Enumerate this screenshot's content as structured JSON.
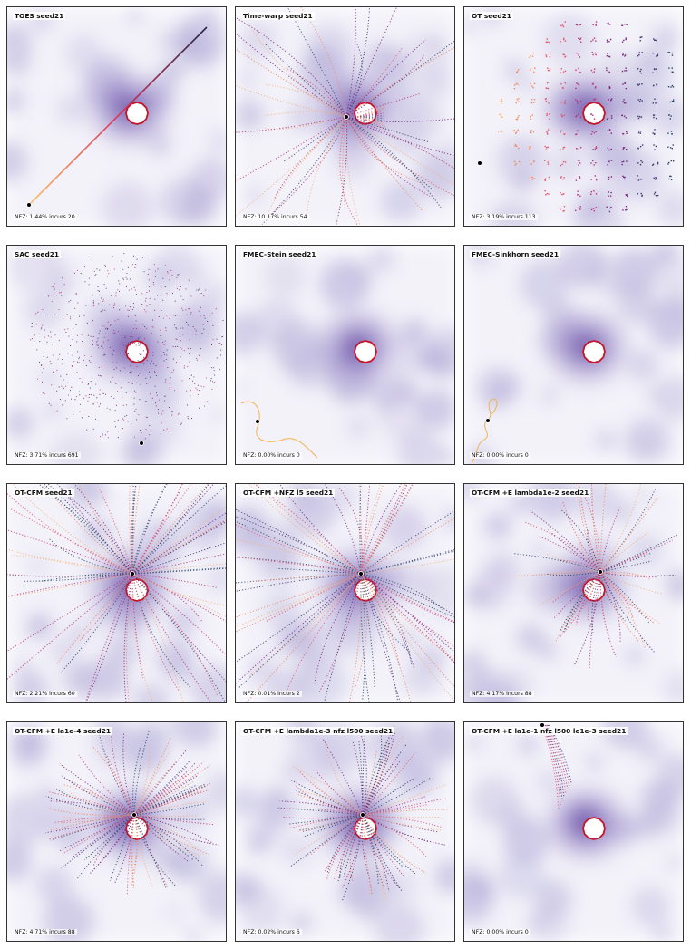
{
  "chart_data": [
    {
      "type": "scatter",
      "title": "TOES seed21",
      "stats": "NFZ: 1.44%  incurs 20",
      "kind": "line"
    },
    {
      "type": "scatter",
      "title": "Time-warp seed21",
      "stats": "NFZ: 10.17%  incurs 54",
      "kind": "burst"
    },
    {
      "type": "scatter",
      "title": "OT seed21",
      "stats": "NFZ: 3.19%  incurs 113",
      "kind": "grid"
    },
    {
      "type": "scatter",
      "title": "SAC seed21",
      "stats": "NFZ: 3.71%  incurs 691",
      "kind": "dots"
    },
    {
      "type": "scatter",
      "title": "FMEC-Stein seed21",
      "stats": "NFZ: 0.00%  incurs 0",
      "kind": "wiggle"
    },
    {
      "type": "scatter",
      "title": "FMEC-Sinkhorn seed21",
      "stats": "NFZ: 0.00%  incurs 0",
      "kind": "wiggle2"
    },
    {
      "type": "scatter",
      "title": "OT-CFM seed21",
      "stats": "NFZ: 2.21%  incurs 60",
      "kind": "wide"
    },
    {
      "type": "scatter",
      "title": "OT-CFM +NFZ l5 seed21",
      "stats": "NFZ: 0.01%  incurs 2",
      "kind": "wide"
    },
    {
      "type": "scatter",
      "title": "OT-CFM +E lambda1e-2 seed21",
      "stats": "NFZ: 4.17%  incurs 88",
      "kind": "fan"
    },
    {
      "type": "scatter",
      "title": "OT-CFM +E la1e-4 seed21",
      "stats": "NFZ: 4.71%  incurs 88",
      "kind": "ring"
    },
    {
      "type": "scatter",
      "title": "OT-CFM +E lambda1e-3 nfz l500 seed21",
      "stats": "NFZ: 0.02%  incurs 6",
      "kind": "ring"
    },
    {
      "type": "scatter",
      "title": "OT-CFM +E la1e-1 nfz l500 le1e-3 seed21",
      "stats": "NFZ: 0.00%  incurs 0",
      "kind": "streak"
    }
  ]
}
